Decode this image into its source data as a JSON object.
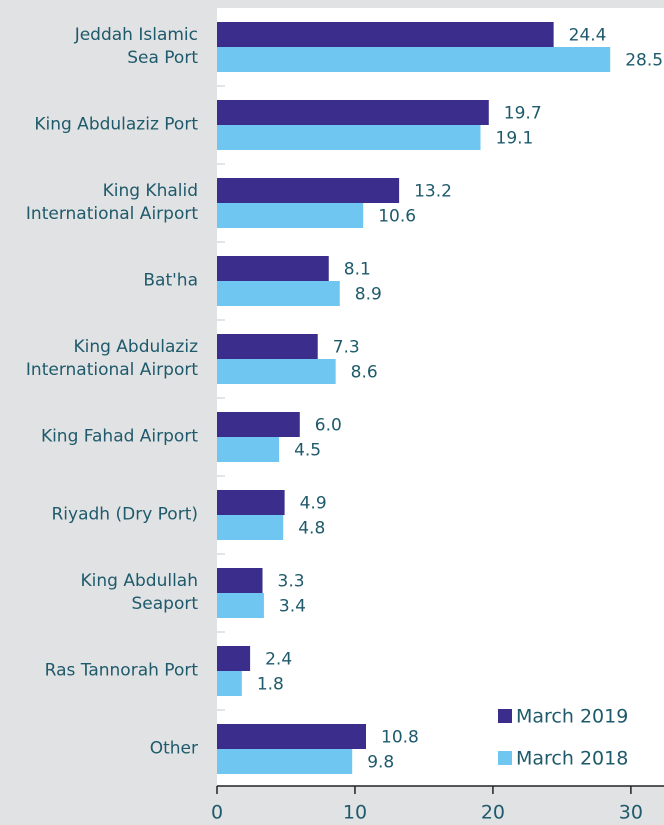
{
  "chart_data": {
    "type": "barh",
    "categories": [
      "Jeddah Islamic\nSea Port",
      "King Abdulaziz Port",
      "King Khalid\nInternational Airport",
      "Bat'ha",
      "King Abdulaziz\nInternational Airport",
      "King Fahad Airport",
      "Riyadh (Dry Port)",
      "King Abdullah\nSeaport",
      "Ras Tannorah Port",
      "Other"
    ],
    "series": [
      {
        "name": "March 2019",
        "color": "#3a2d8c",
        "values": [
          24.4,
          19.7,
          13.2,
          8.1,
          7.3,
          6.0,
          4.9,
          3.3,
          2.4,
          10.8
        ],
        "value_labels": [
          "24.4",
          "19.7",
          "13.2",
          "8.1",
          "7.3",
          "6.0",
          "4.9",
          "3.3",
          "2.4",
          "10.8"
        ]
      },
      {
        "name": "March 2018",
        "color": "#6fc7f1",
        "values": [
          28.5,
          19.1,
          10.6,
          8.9,
          8.6,
          4.5,
          4.8,
          3.4,
          1.8,
          9.8
        ],
        "value_labels": [
          "28.5",
          "19.1",
          "10.6",
          "8.9",
          "8.6",
          "4.5",
          "4.8",
          "3.4",
          "1.8",
          "9.8"
        ]
      }
    ],
    "xlim": [
      0,
      32.4
    ],
    "xticks": [
      0,
      10,
      20,
      30
    ],
    "legend": "bottom-right"
  }
}
